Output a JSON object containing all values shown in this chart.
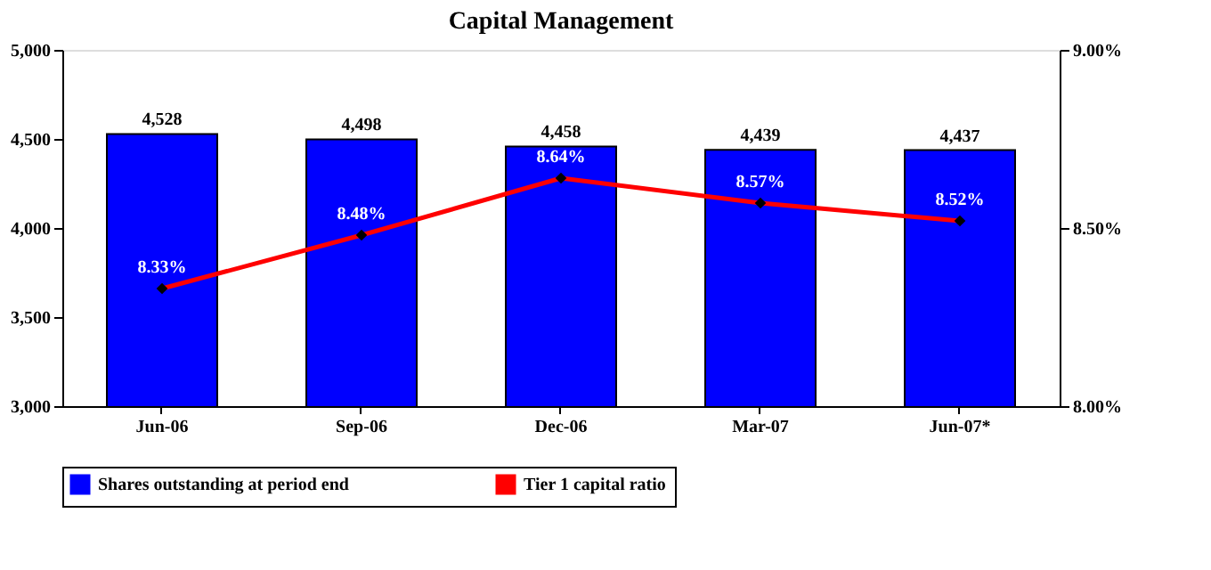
{
  "chart_data": {
    "type": "bar",
    "title": "Capital Management",
    "categories": [
      "Jun-06",
      "Sep-06",
      "Dec-06",
      "Mar-07",
      "Jun-07*"
    ],
    "series": [
      {
        "name": "Shares outstanding at period end",
        "color": "#0000ff",
        "values": [
          4528,
          4498,
          4458,
          4439,
          4437
        ],
        "value_labels": [
          "4,528",
          "4,498",
          "4,458",
          "4,439",
          "4,437"
        ]
      },
      {
        "name": "Tier 1 capital ratio",
        "type": "line",
        "axis": "y2",
        "color": "#ff0000",
        "marker": "diamond",
        "line_style": "solid",
        "values": [
          8.33,
          8.48,
          8.64,
          8.57,
          8.52
        ],
        "value_labels": [
          "8.33%",
          "8.48%",
          "8.64%",
          "8.57%",
          "8.52%"
        ]
      }
    ],
    "ylim": [
      3000,
      5000
    ],
    "yticks": [
      {
        "value": 3000,
        "label": "3,000"
      },
      {
        "value": 3500,
        "label": "3,500"
      },
      {
        "value": 4000,
        "label": "4,000"
      },
      {
        "value": 4500,
        "label": "4,500"
      },
      {
        "value": 5000,
        "label": "5,000"
      }
    ],
    "y2lim": [
      8.0,
      9.0
    ],
    "y2ticks": [
      {
        "value": 8.0,
        "label": "8.00%"
      },
      {
        "value": 8.5,
        "label": "8.50%"
      },
      {
        "value": 9.0,
        "label": "9.00%"
      }
    ],
    "grid": false,
    "legend": "bottom"
  }
}
